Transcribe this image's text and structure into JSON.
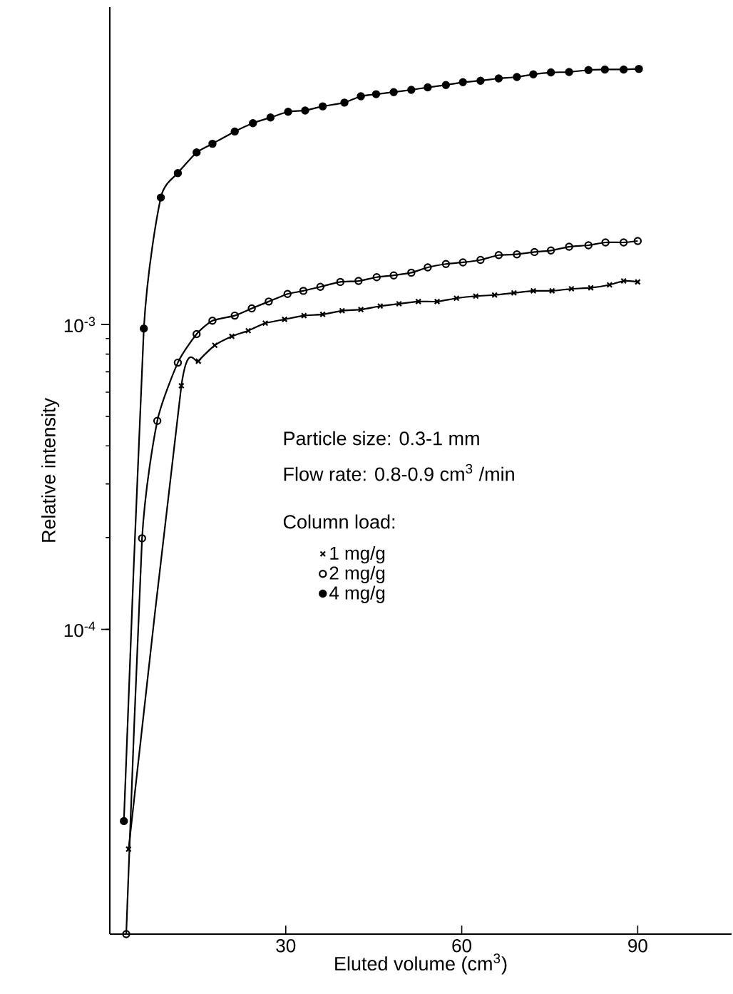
{
  "chart_data": {
    "type": "line",
    "xlabel": "Eluted volume (cm$^{3}$)",
    "ylabel": "Relative intensity",
    "legend_title": "Column load:",
    "legend": "bottom left",
    "log": "y",
    "grid": false,
    "line_style": "solid",
    "xlim": [
      0,
      106
    ],
    "ylim": [
      1e-05,
      0.011
    ],
    "xticks": [
      30,
      60,
      90
    ],
    "yticks": [
      {
        "value": 0.0001,
        "label": "10$^{-4}$"
      },
      {
        "value": 0.001,
        "label": "10$^{-3}$"
      }
    ],
    "annotations": [
      "Particle size: 0.3-1 mm",
      "Flow rate: 0.8-0.9 cm$^{3}$ /min"
    ],
    "series": [
      {
        "name": "1 mg/g",
        "color": "#000000",
        "marker": "cross",
        "x": [
          3.2,
          12.2,
          15.1,
          17.9,
          20.8,
          23.6,
          26.5,
          29.8,
          33.1,
          36.3,
          39.6,
          42.8,
          46.1,
          49.3,
          52.6,
          55.8,
          59.1,
          62.4,
          65.6,
          68.9,
          72.2,
          75.4,
          78.7,
          82.0,
          85.2,
          87.6,
          90.0
        ],
        "values": [
          1.9e-05,
          0.00063,
          0.000758,
          0.000855,
          0.000915,
          0.000955,
          0.00101,
          0.00104,
          0.00107,
          0.00108,
          0.00111,
          0.00112,
          0.00115,
          0.00117,
          0.00119,
          0.00119,
          0.00122,
          0.00124,
          0.00125,
          0.00127,
          0.00129,
          0.00129,
          0.00131,
          0.00132,
          0.00135,
          0.00139,
          0.00138
        ]
      },
      {
        "name": "2 mg/g",
        "color": "#000000",
        "marker": "circle open",
        "x": [
          2.8,
          5.5,
          8.1,
          11.6,
          14.8,
          17.5,
          21.3,
          24.2,
          27.1,
          30.3,
          33.0,
          35.9,
          39.3,
          42.4,
          45.5,
          48.4,
          51.4,
          54.2,
          57.3,
          60.2,
          63.2,
          66.3,
          69.4,
          72.4,
          75.2,
          78.3,
          81.6,
          84.5,
          87.6,
          90.0
        ],
        "values": [
          1e-05,
          0.000199,
          0.000483,
          0.00075,
          0.000931,
          0.00103,
          0.00107,
          0.00113,
          0.00119,
          0.00126,
          0.00129,
          0.00133,
          0.00138,
          0.00139,
          0.00143,
          0.00145,
          0.00148,
          0.00154,
          0.00158,
          0.0016,
          0.00163,
          0.00169,
          0.0017,
          0.00173,
          0.00175,
          0.0018,
          0.00182,
          0.00186,
          0.00186,
          0.00188
        ]
      },
      {
        "name": "4 mg/g",
        "color": "#000000",
        "marker": "circle",
        "x": [
          2.4,
          5.8,
          8.7,
          11.6,
          14.8,
          17.5,
          21.3,
          24.4,
          27.4,
          30.4,
          33.3,
          36.3,
          40.0,
          42.8,
          45.4,
          48.4,
          51.4,
          54.2,
          57.3,
          60.2,
          63.2,
          66.3,
          69.4,
          72.2,
          75.2,
          78.3,
          81.6,
          84.4,
          87.6,
          90.2
        ],
        "values": [
          2.35e-05,
          0.00097,
          0.00261,
          0.00314,
          0.00367,
          0.00392,
          0.0043,
          0.00458,
          0.00478,
          0.00499,
          0.00504,
          0.0052,
          0.00535,
          0.00561,
          0.0057,
          0.00579,
          0.00589,
          0.006,
          0.00611,
          0.00624,
          0.00631,
          0.00642,
          0.00649,
          0.00662,
          0.00672,
          0.00674,
          0.00684,
          0.00687,
          0.00687,
          0.0069
        ]
      }
    ]
  }
}
